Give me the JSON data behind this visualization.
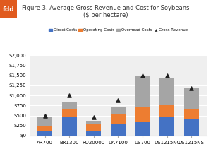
{
  "title": "Figure 3. Average Gross Revenue and Cost for Soybeans\n($ per hectare)",
  "categories": [
    "AR700",
    "BR1300",
    "RU20000",
    "UA7100",
    "US700",
    "US1215NC",
    "US1215NS"
  ],
  "direct_costs": [
    125,
    475,
    125,
    275,
    350,
    450,
    400
  ],
  "operating_costs": [
    125,
    175,
    175,
    275,
    350,
    300,
    275
  ],
  "overhead_costs": [
    225,
    175,
    75,
    150,
    800,
    700,
    500
  ],
  "gross_revenue": [
    500,
    1000,
    450,
    875,
    1500,
    1490,
    1175
  ],
  "colors": {
    "direct": "#4472C4",
    "operating": "#ED7D31",
    "overhead": "#A5A5A5",
    "gross_rev_marker": "#1F1F1F"
  },
  "ylim": [
    0,
    2000
  ],
  "yticks": [
    0,
    250,
    500,
    750,
    1000,
    1250,
    1500,
    1750,
    2000
  ],
  "background_color": "#EFEFEF",
  "fdd_box_color": "#E05A1E",
  "legend_labels": [
    "Direct Costs",
    "Operating Costs",
    "Overhead Costs",
    "Gross Revenue"
  ]
}
